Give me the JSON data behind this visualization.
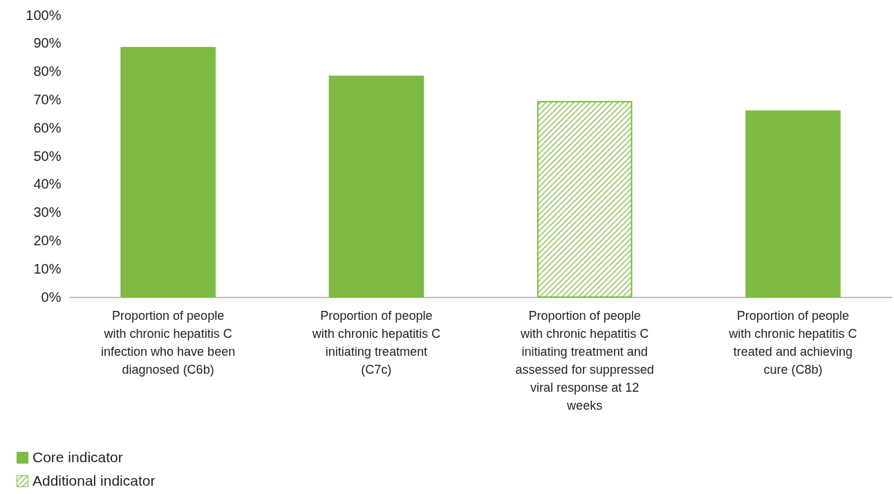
{
  "chart_data": {
    "type": "bar",
    "categories": [
      "Proportion of people with chronic hepatitis C infection who have been diagnosed (C6b)",
      "Proportion of people with chronic hepatitis C initiating treatment (C7c)",
      "Proportion of people with chronic hepatitis C initiating treatment and assessed for suppressed viral response at 12 weeks",
      "Proportion of people with chronic hepatitis C treated and achieving cure (C8b)"
    ],
    "series": [
      {
        "name": "Core indicator",
        "color": "#7dbb42",
        "values": [
          88.5,
          78.3,
          null,
          66
        ]
      },
      {
        "name": "Additional indicator",
        "color": "#7dbb42",
        "values": [
          null,
          null,
          69.3,
          null
        ]
      }
    ],
    "ylim": [
      0,
      100
    ],
    "yticks": [
      {
        "value": 0,
        "label": "0%"
      },
      {
        "value": 10,
        "label": "10%"
      },
      {
        "value": 20,
        "label": "20%"
      },
      {
        "value": 30,
        "label": "30%"
      },
      {
        "value": 40,
        "label": "40%"
      },
      {
        "value": 50,
        "label": "50%"
      },
      {
        "value": 60,
        "label": "60%"
      },
      {
        "value": 70,
        "label": "70%"
      },
      {
        "value": 80,
        "label": "80%"
      },
      {
        "value": 90,
        "label": "90%"
      },
      {
        "value": 100,
        "label": "100%"
      }
    ],
    "grid": false,
    "legend": "bottom left"
  }
}
